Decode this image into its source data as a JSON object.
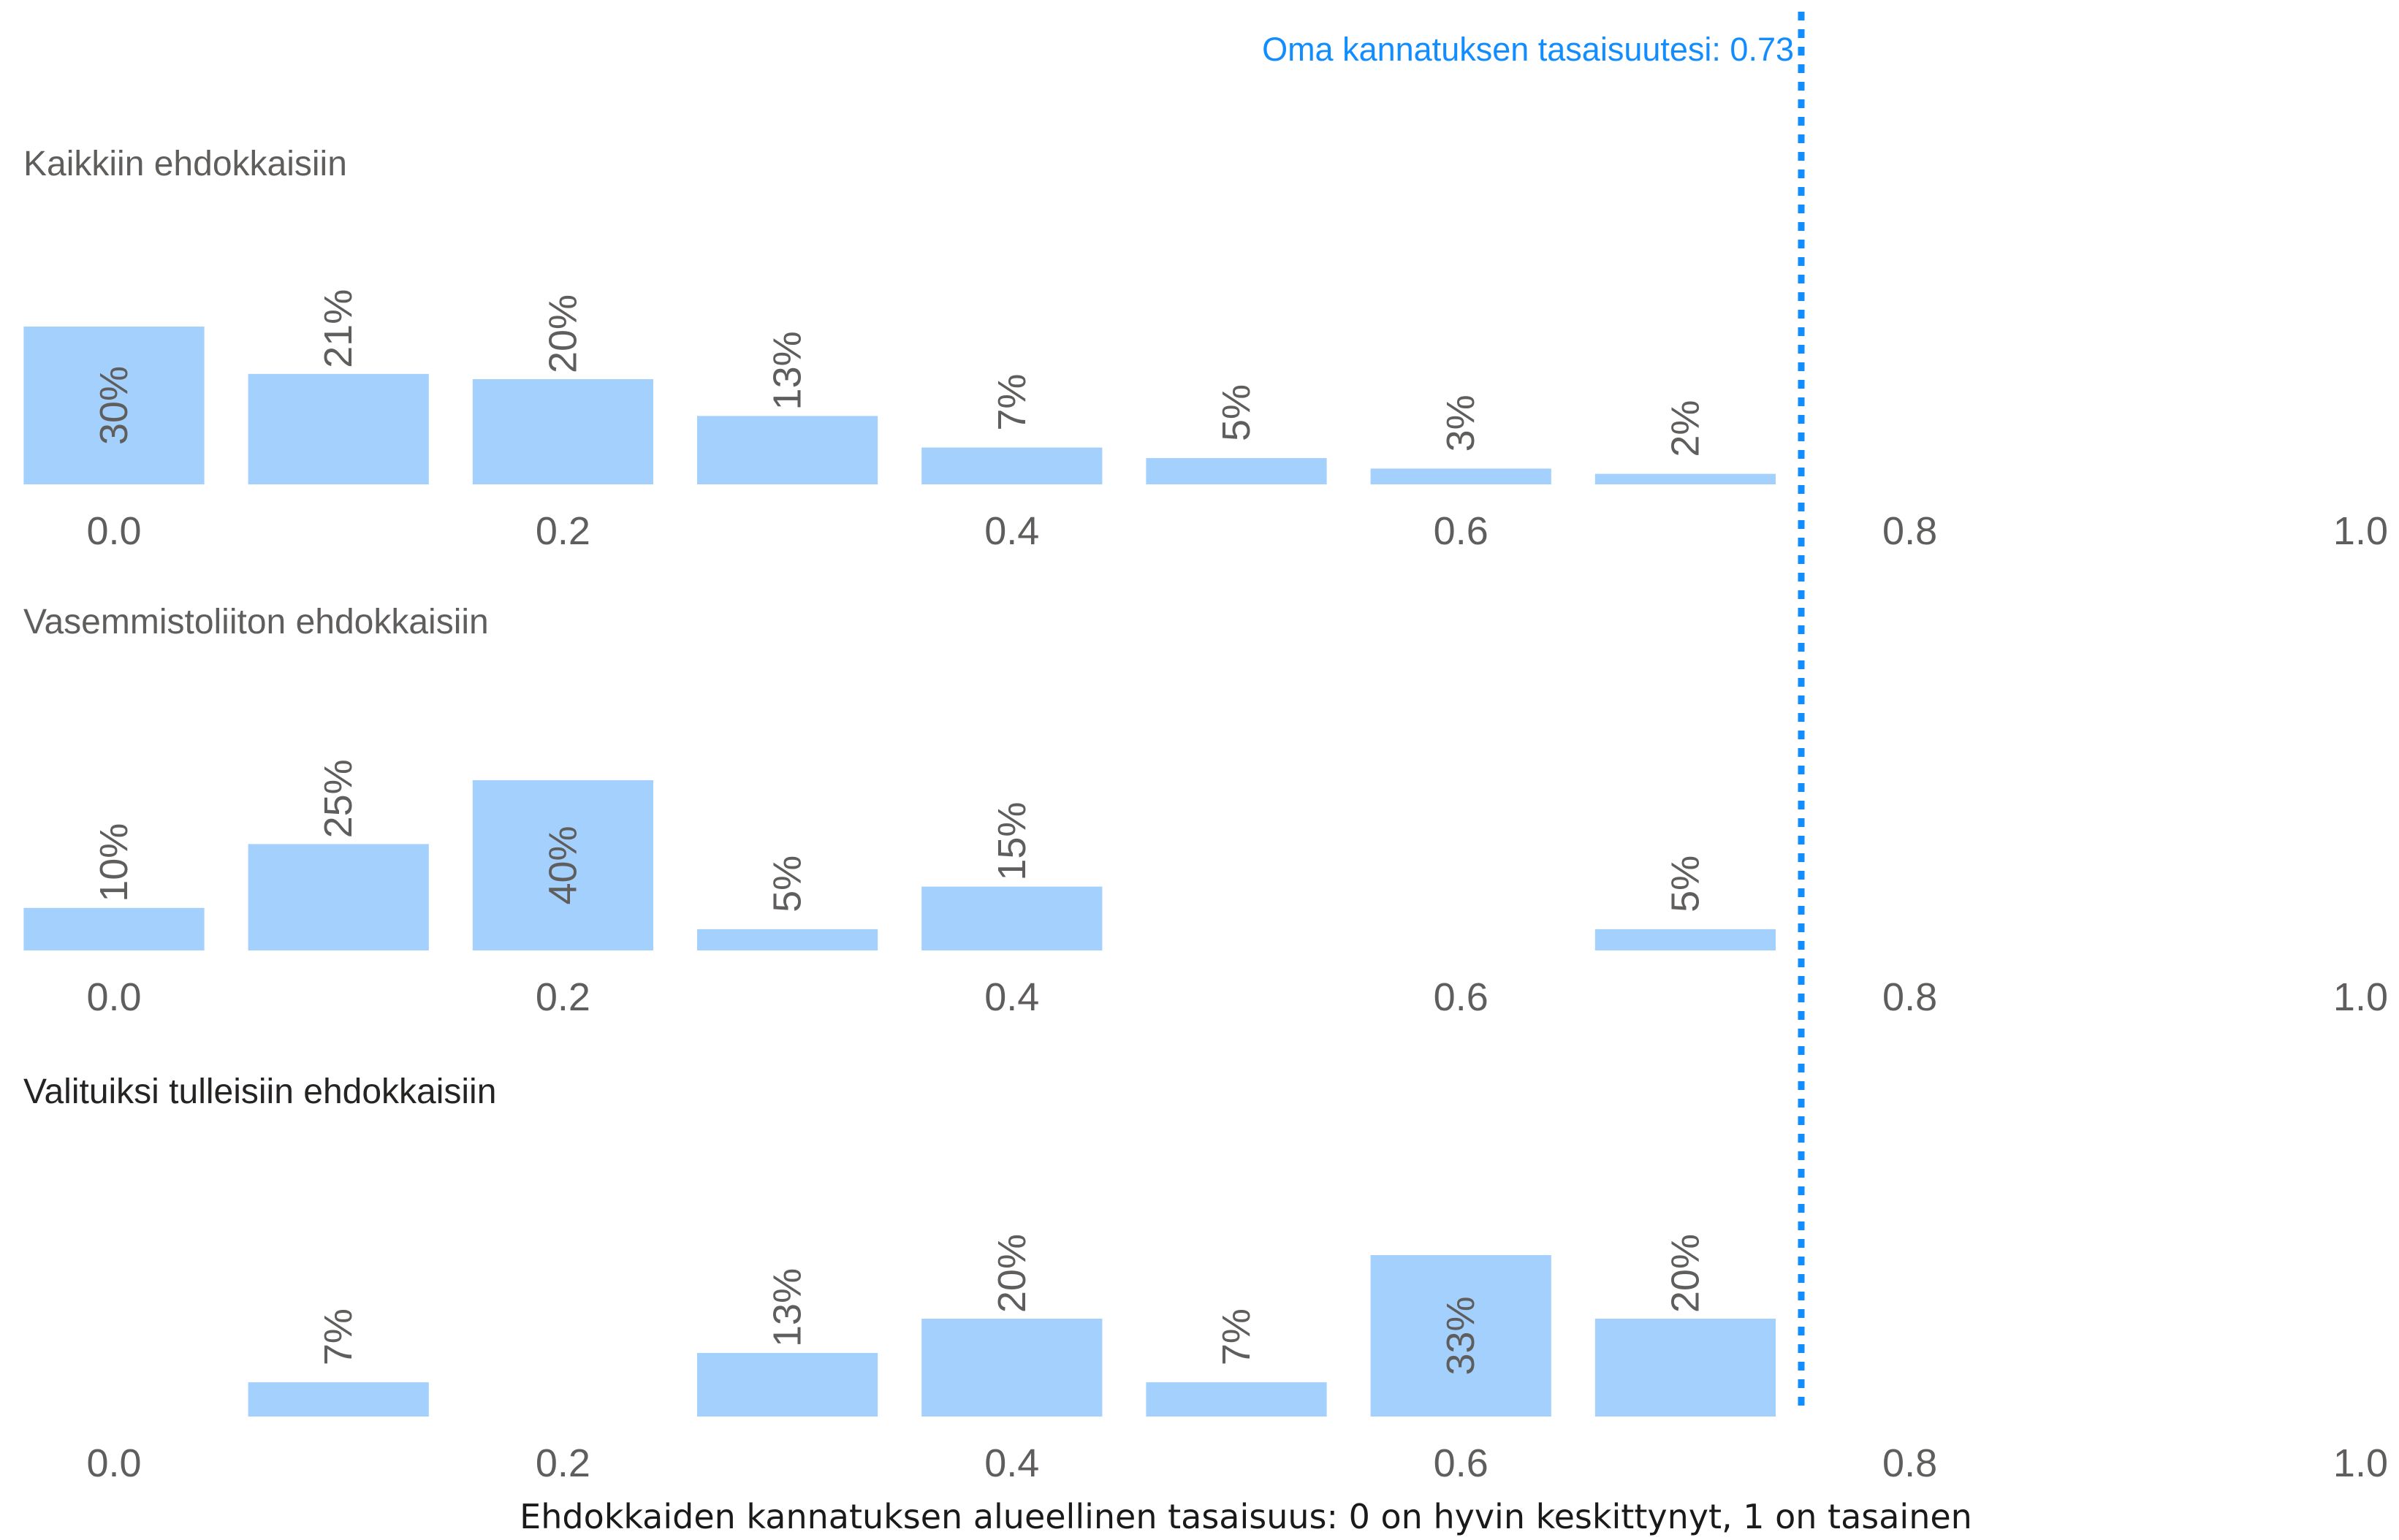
{
  "chart_data": {
    "type": "bar",
    "xlabel": "Ehdokkaiden kannatuksen alueellinen tasaisuus: 0 on hyvin keskittynyt, 1 on tasainen",
    "x_ticks": [
      "0.0",
      "0.2",
      "0.4",
      "0.6",
      "0.8",
      "1.0"
    ],
    "xlim": [
      0,
      1
    ],
    "bin_width": 0.1,
    "grid": false,
    "bar_color": "#a3d0fd",
    "reference_line": {
      "value": 0.73,
      "label": "Oma kannatuksen tasaisuutesi: 0.73",
      "color": "#118dff",
      "style": "dotted"
    },
    "panels": [
      {
        "title": "Kaikkiin ehdokkaisiin",
        "title_color": "#605e5c",
        "bins": [
          0.0,
          0.1,
          0.2,
          0.3,
          0.4,
          0.5,
          0.6,
          0.7
        ],
        "values": [
          30,
          21,
          20,
          13,
          7,
          5,
          3,
          2
        ],
        "labels": [
          "30%",
          "21%",
          "20%",
          "13%",
          "7%",
          "5%",
          "3%",
          "2%"
        ]
      },
      {
        "title": "Vasemmistoliiton ehdokkaisiin",
        "title_color": "#605e5c",
        "bins": [
          0.0,
          0.1,
          0.2,
          0.3,
          0.4,
          0.7
        ],
        "values": [
          10,
          25,
          40,
          5,
          15,
          5
        ],
        "labels": [
          "10%",
          "25%",
          "40%",
          "5%",
          "15%",
          "5%"
        ]
      },
      {
        "title": "Valituiksi tulleisiin ehdokkaisiin",
        "title_color": "#252423",
        "bins": [
          0.1,
          0.3,
          0.4,
          0.5,
          0.6,
          0.7
        ],
        "values": [
          7,
          13,
          20,
          7,
          33,
          20
        ],
        "labels": [
          "7%",
          "13%",
          "20%",
          "7%",
          "33%",
          "20%"
        ]
      }
    ]
  }
}
